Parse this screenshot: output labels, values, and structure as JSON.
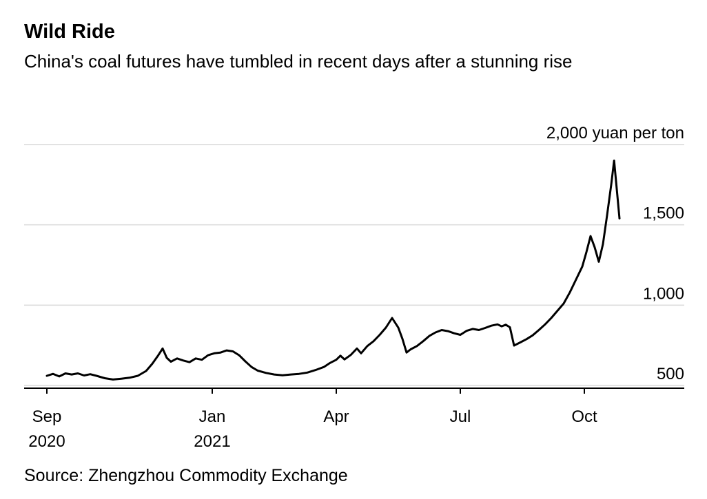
{
  "header": {
    "title": "Wild Ride",
    "subtitle": "China's coal futures have tumbled in recent days after a stunning rise"
  },
  "footer": {
    "source": "Source: Zhengzhou Commodity Exchange"
  },
  "chart_data": {
    "type": "line",
    "title": "Wild Ride",
    "subtitle": "China's coal futures have tumbled in recent days after a stunning rise",
    "source": "Source: Zhengzhou Commodity Exchange",
    "grid": "horizontal",
    "legend": "none",
    "line_color": "#000000",
    "grid_color": "#d9d9d9",
    "axis_color": "#000000",
    "y_axis": {
      "side": "right",
      "unit_label": "2,000 yuan per ton",
      "range_yuan": [
        480,
        2100
      ],
      "ticks": [
        {
          "value": 500,
          "label": "500"
        },
        {
          "value": 1000,
          "label": "1,000"
        },
        {
          "value": 1500,
          "label": "1,500"
        },
        {
          "value": 2000,
          "label": "2,000 yuan per ton"
        }
      ]
    },
    "x_axis": {
      "t_unit": "months since Sep 2020",
      "ticks": [
        {
          "t": 0,
          "label": "Sep",
          "sublabel": "2020"
        },
        {
          "t": 4,
          "label": "Jan",
          "sublabel": "2021"
        },
        {
          "t": 7,
          "label": "Apr"
        },
        {
          "t": 10,
          "label": "Jul"
        },
        {
          "t": 13,
          "label": "Oct"
        }
      ]
    },
    "series": [
      {
        "name": "China coal futures price (yuan per ton)",
        "points": [
          [
            0,
            560
          ],
          [
            0.15,
            572
          ],
          [
            0.3,
            556
          ],
          [
            0.45,
            575
          ],
          [
            0.6,
            568
          ],
          [
            0.75,
            575
          ],
          [
            0.9,
            562
          ],
          [
            1.05,
            570
          ],
          [
            1.2,
            560
          ],
          [
            1.4,
            545
          ],
          [
            1.6,
            537
          ],
          [
            1.8,
            542
          ],
          [
            2,
            548
          ],
          [
            2.2,
            560
          ],
          [
            2.4,
            590
          ],
          [
            2.55,
            635
          ],
          [
            2.7,
            690
          ],
          [
            2.8,
            730
          ],
          [
            2.9,
            672
          ],
          [
            3,
            648
          ],
          [
            3.15,
            668
          ],
          [
            3.3,
            655
          ],
          [
            3.45,
            645
          ],
          [
            3.6,
            668
          ],
          [
            3.75,
            660
          ],
          [
            3.9,
            688
          ],
          [
            4.05,
            700
          ],
          [
            4.2,
            705
          ],
          [
            4.35,
            718
          ],
          [
            4.5,
            712
          ],
          [
            4.65,
            688
          ],
          [
            4.8,
            650
          ],
          [
            4.95,
            615
          ],
          [
            5.1,
            592
          ],
          [
            5.3,
            578
          ],
          [
            5.5,
            568
          ],
          [
            5.7,
            563
          ],
          [
            5.9,
            568
          ],
          [
            6.1,
            572
          ],
          [
            6.3,
            580
          ],
          [
            6.5,
            596
          ],
          [
            6.7,
            615
          ],
          [
            6.85,
            640
          ],
          [
            7,
            660
          ],
          [
            7.1,
            685
          ],
          [
            7.2,
            662
          ],
          [
            7.35,
            690
          ],
          [
            7.5,
            730
          ],
          [
            7.6,
            700
          ],
          [
            7.75,
            745
          ],
          [
            7.9,
            775
          ],
          [
            8.05,
            815
          ],
          [
            8.2,
            860
          ],
          [
            8.35,
            920
          ],
          [
            8.5,
            860
          ],
          [
            8.6,
            790
          ],
          [
            8.7,
            705
          ],
          [
            8.8,
            725
          ],
          [
            8.95,
            745
          ],
          [
            9.1,
            775
          ],
          [
            9.25,
            808
          ],
          [
            9.4,
            830
          ],
          [
            9.55,
            845
          ],
          [
            9.7,
            838
          ],
          [
            9.85,
            825
          ],
          [
            10,
            815
          ],
          [
            10.15,
            840
          ],
          [
            10.3,
            852
          ],
          [
            10.45,
            845
          ],
          [
            10.6,
            858
          ],
          [
            10.75,
            872
          ],
          [
            10.9,
            880
          ],
          [
            11,
            868
          ],
          [
            11.1,
            878
          ],
          [
            11.2,
            862
          ],
          [
            11.3,
            748
          ],
          [
            11.45,
            768
          ],
          [
            11.6,
            788
          ],
          [
            11.75,
            812
          ],
          [
            11.9,
            845
          ],
          [
            12.05,
            880
          ],
          [
            12.2,
            920
          ],
          [
            12.35,
            965
          ],
          [
            12.5,
            1010
          ],
          [
            12.65,
            1080
          ],
          [
            12.8,
            1160
          ],
          [
            12.95,
            1240
          ],
          [
            13.05,
            1330
          ],
          [
            13.15,
            1430
          ],
          [
            13.25,
            1360
          ],
          [
            13.35,
            1270
          ],
          [
            13.45,
            1380
          ],
          [
            13.55,
            1560
          ],
          [
            13.65,
            1750
          ],
          [
            13.72,
            1900
          ],
          [
            13.85,
            1540
          ]
        ]
      }
    ]
  }
}
